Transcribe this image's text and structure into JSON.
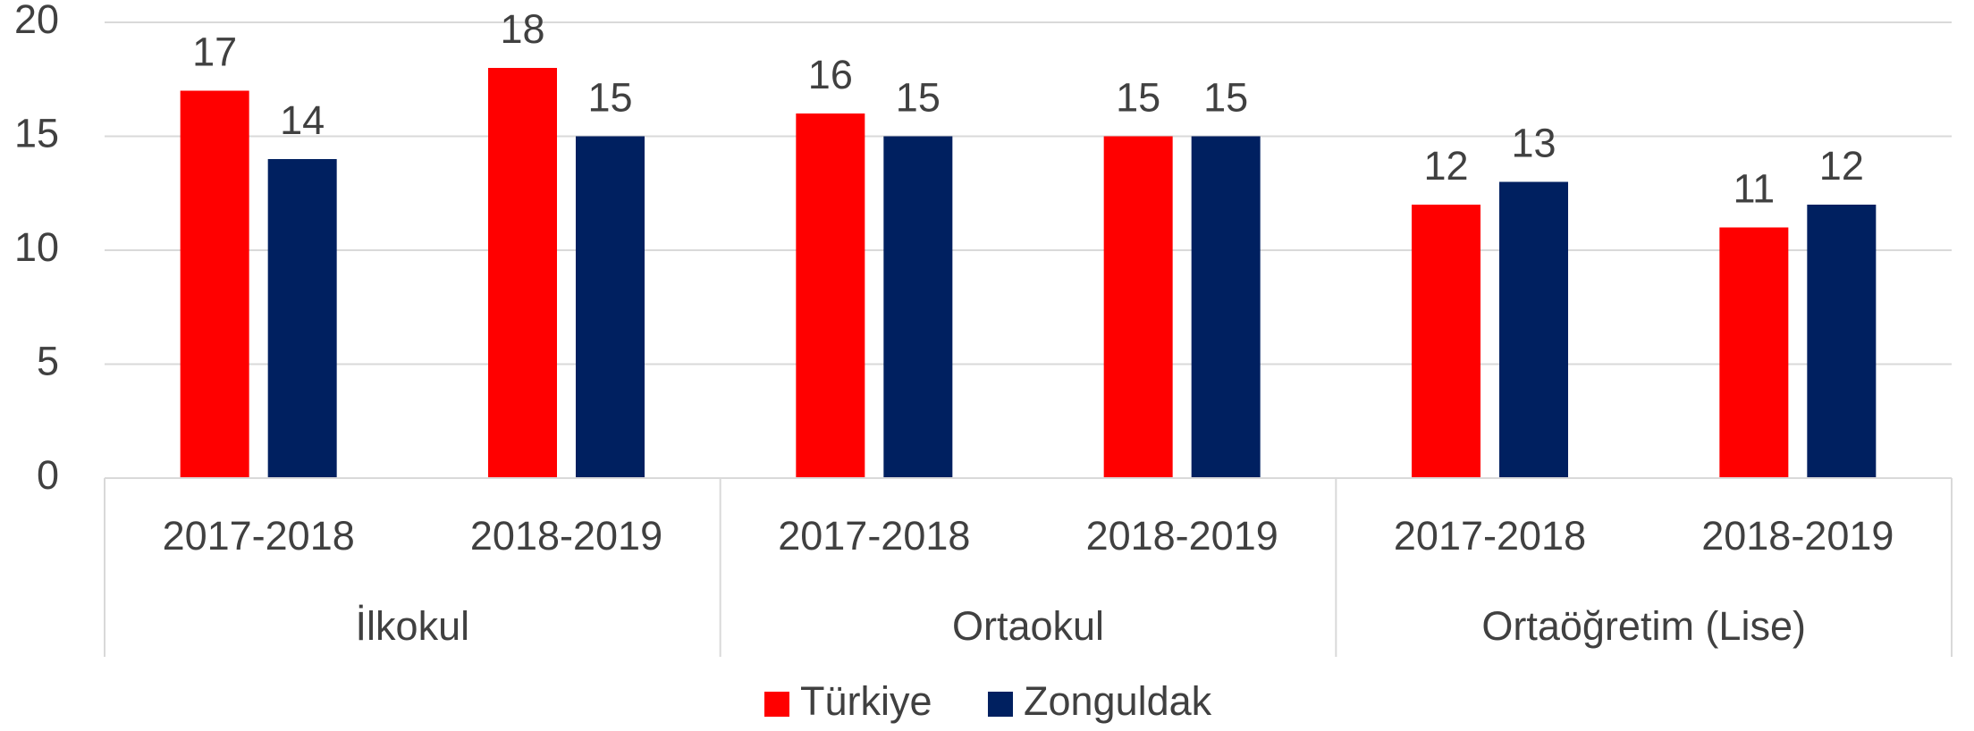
{
  "chart_data": {
    "type": "bar",
    "categories": [
      "2017-2018",
      "2018-2019",
      "2017-2018",
      "2018-2019",
      "2017-2018",
      "2018-2019"
    ],
    "groups": [
      "İlkokul",
      "Ortaokul",
      "Ortaöğretim (Lise)"
    ],
    "series": [
      {
        "name": "Türkiye",
        "color": "#ff0000",
        "values": [
          17,
          18,
          16,
          15,
          12,
          11
        ]
      },
      {
        "name": "Zonguldak",
        "color": "#002060",
        "values": [
          14,
          15,
          15,
          15,
          13,
          12
        ]
      }
    ],
    "ylim": [
      0,
      20
    ],
    "yticks": [
      0,
      5,
      10,
      15,
      20
    ],
    "grid": true,
    "legend": "bottom"
  }
}
